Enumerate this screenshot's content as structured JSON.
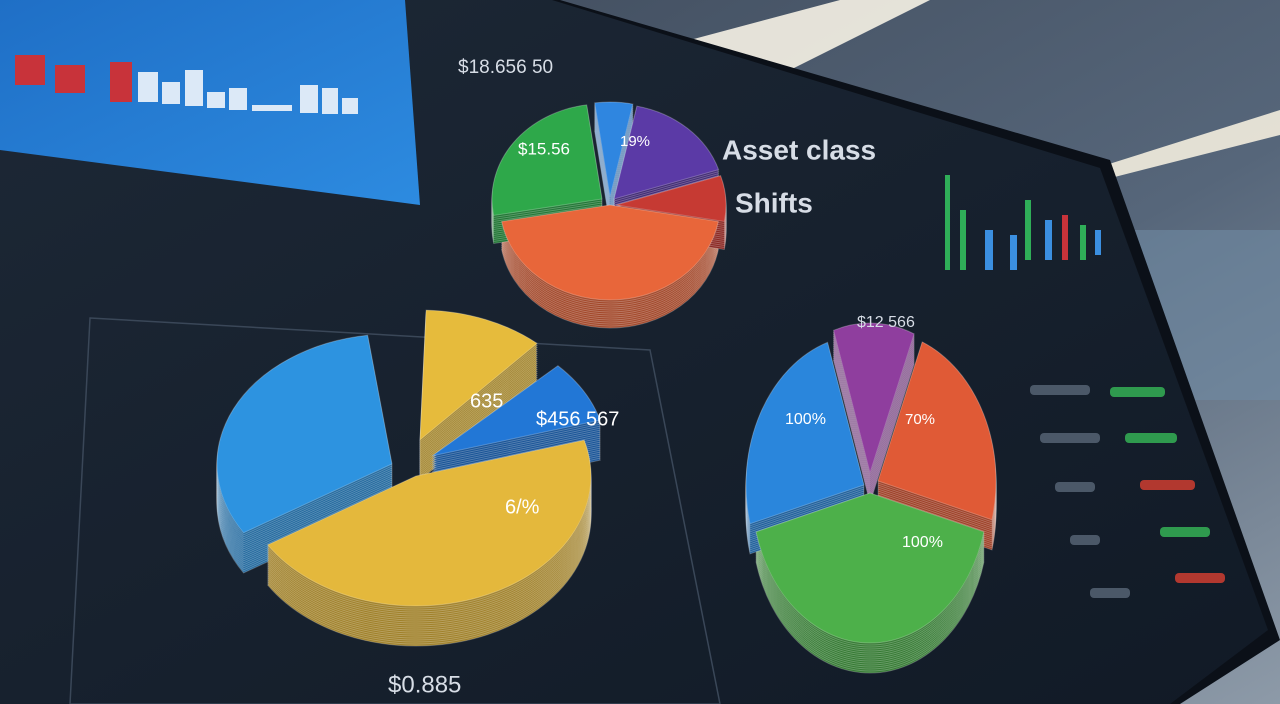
{
  "header": {
    "title": "Asset class",
    "subtitle": "Shifts"
  },
  "panels": [
    {
      "label": "$18.656 50",
      "slice_labels": [
        "$15.56",
        "19%"
      ]
    },
    {
      "label": "$0.885",
      "slice_labels": [
        "635",
        "$456 567",
        "6/%"
      ]
    },
    {
      "label": "$12 566",
      "slice_labels": [
        "100%",
        "70%",
        "100%"
      ]
    }
  ]
}
